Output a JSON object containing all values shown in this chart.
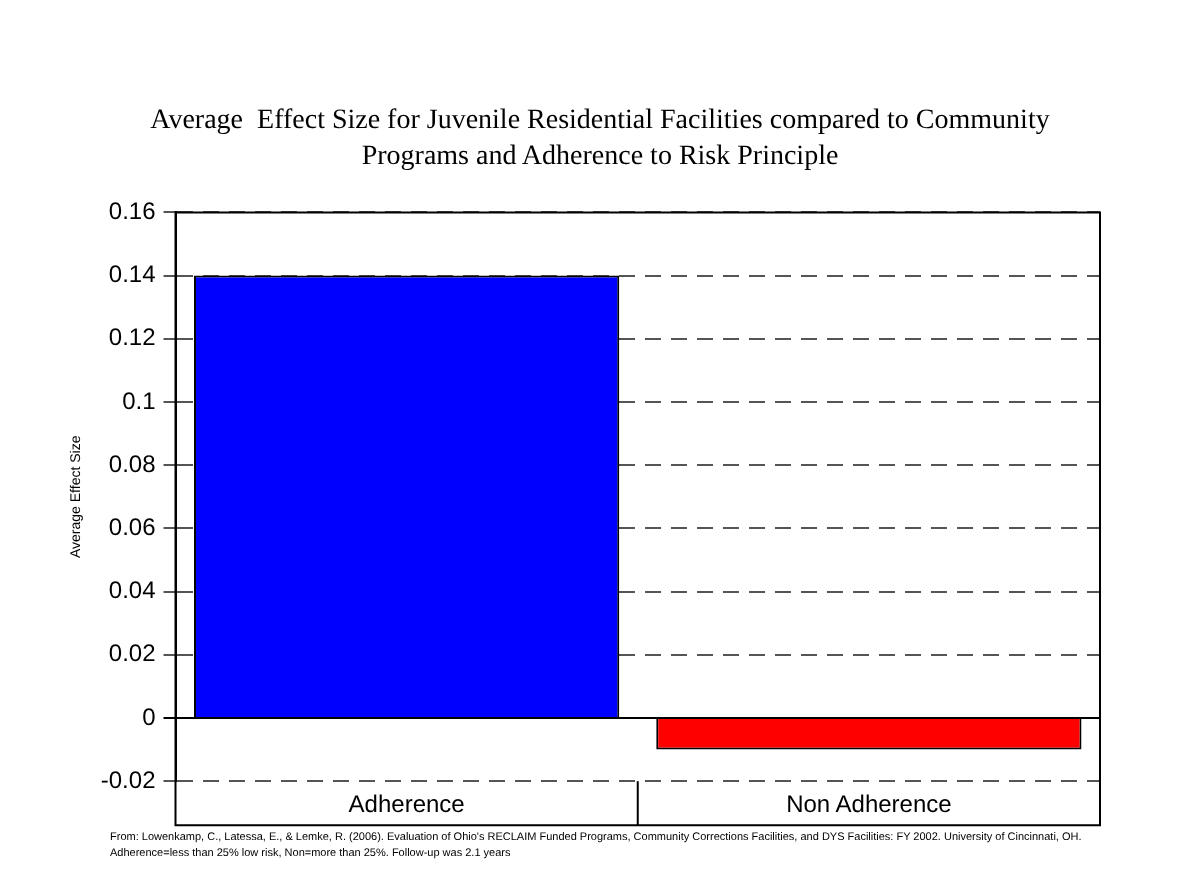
{
  "chart_data": {
    "type": "bar",
    "title": "Average  Effect Size for Juvenile Residential Facilities compared to Community Programs and Adherence to Risk Principle",
    "ylabel": "Average Effect Size",
    "categories": [
      "Adherence",
      "Non Adherence"
    ],
    "series": [
      {
        "colors": [
          "#0000ff",
          "#ff0000"
        ],
        "values": [
          0.14,
          -0.01
        ]
      }
    ],
    "ylim": [
      -0.02,
      0.16
    ],
    "yticks": [
      -0.02,
      0,
      0.02,
      0.04,
      0.06,
      0.08,
      0.1,
      0.12,
      0.14,
      0.16
    ],
    "grid": "y",
    "line_style": "dashed",
    "legend": false,
    "annotations": [
      "From: Lowenkamp, C., Latessa, E.,  & Lemke, R. (2006). Evaluation of Ohio's RECLAIM Funded Programs, Community Corrections Facilities, and DYS Facilities: FY 2002.  University of Cincinnati, OH.  Adherence=less than 25% low risk, Non=more than 25%. Follow-up was 2.1 years"
    ]
  }
}
